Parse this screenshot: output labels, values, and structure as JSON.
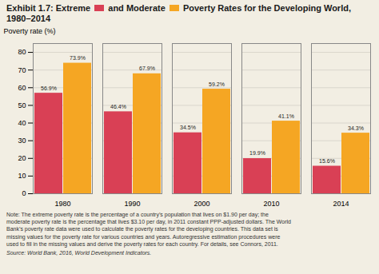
{
  "chart_data": {
    "type": "bar",
    "title": "Exhibit 1.7: Extreme and Moderate Poverty Rates for the Developing World, 1980–2014",
    "ylabel": "Poverty rate (%)",
    "categories": [
      "1980",
      "1990",
      "2000",
      "2010",
      "2014"
    ],
    "series": [
      {
        "name": "Extreme",
        "color": "#D94055",
        "values": [
          56.9,
          46.4,
          34.5,
          19.9,
          15.6
        ],
        "value_labels": [
          "56.9%",
          "46.4%",
          "34.5%",
          "19.9%",
          "15.6%"
        ]
      },
      {
        "name": "Moderate",
        "color": "#F5A623",
        "values": [
          73.9,
          67.9,
          59.2,
          41.1,
          34.3
        ],
        "value_labels": [
          "73.9%",
          "67.9%",
          "59.2%",
          "41.1%",
          "34.3%"
        ]
      }
    ],
    "ylim": [
      0,
      85
    ],
    "yticks": [
      0,
      10,
      20,
      30,
      40,
      50,
      60,
      70,
      80
    ],
    "grid": true,
    "data_labels": true,
    "note": "Note: The extreme poverty rate is the percentage of a country’s population that lives on $1.90 per day; the\nmoderate poverty rate is the percentage that lives $3.10 per day, in 2011 constant PPP-adjusted dollars. The World\nBank’s poverty rate data were used to calculate the poverty rates for the developing countries. This data set is\nmissing values for the poverty rate for various countries and years. Autoregressive estimation procedures were\nused to fill in the missing values and derive the poverty rates for each country. For details, see Connors, 2011.",
    "source": "Source: World Bank, 2016, World Development Indicators."
  }
}
